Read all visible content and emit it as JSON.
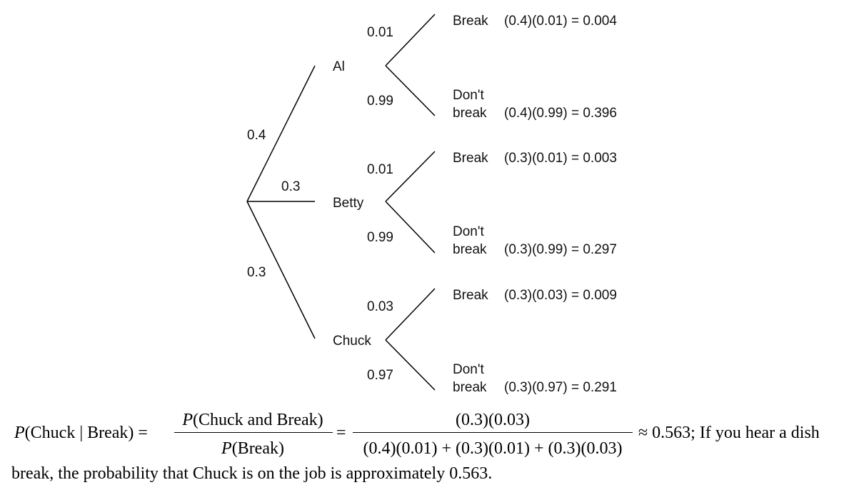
{
  "tree": {
    "first_level": [
      {
        "name": "Al",
        "prob": "0.4"
      },
      {
        "name": "Betty",
        "prob": "0.3"
      },
      {
        "name": "Chuck",
        "prob": "0.3"
      }
    ],
    "branches": [
      {
        "break_prob": "0.01",
        "dont_prob": "0.99",
        "break_label": "Break",
        "break_calc": "(0.4)(0.01) = 0.004",
        "dont_label_1": "Don't",
        "dont_label_2": "break",
        "dont_calc": "(0.4)(0.99) = 0.396"
      },
      {
        "break_prob": "0.01",
        "dont_prob": "0.99",
        "break_label": "Break",
        "break_calc": "(0.3)(0.01) = 0.003",
        "dont_label_1": "Don't",
        "dont_label_2": "break",
        "dont_calc": "(0.3)(0.99) = 0.297"
      },
      {
        "break_prob": "0.03",
        "dont_prob": "0.97",
        "break_label": "Break",
        "break_calc": "(0.3)(0.03) = 0.009",
        "dont_label_1": "Don't",
        "dont_label_2": "break",
        "dont_calc": "(0.3)(0.97) = 0.291"
      }
    ]
  },
  "formula": {
    "lhs_p": "P",
    "lhs_args": "(Chuck | Break) =",
    "frac1_num_p": "P",
    "frac1_num": "(Chuck and Break)",
    "frac1_den_p": "P",
    "frac1_den": "(Break)",
    "equals": "=",
    "frac2_num": "(0.3)(0.03)",
    "frac2_den": "(0.4)(0.01) + (0.3)(0.01) + (0.3)(0.03)",
    "result": "≈ 0.563; If you hear a dish",
    "conclusion": "break, the probability that Chuck is on the job is approximately 0.563."
  }
}
